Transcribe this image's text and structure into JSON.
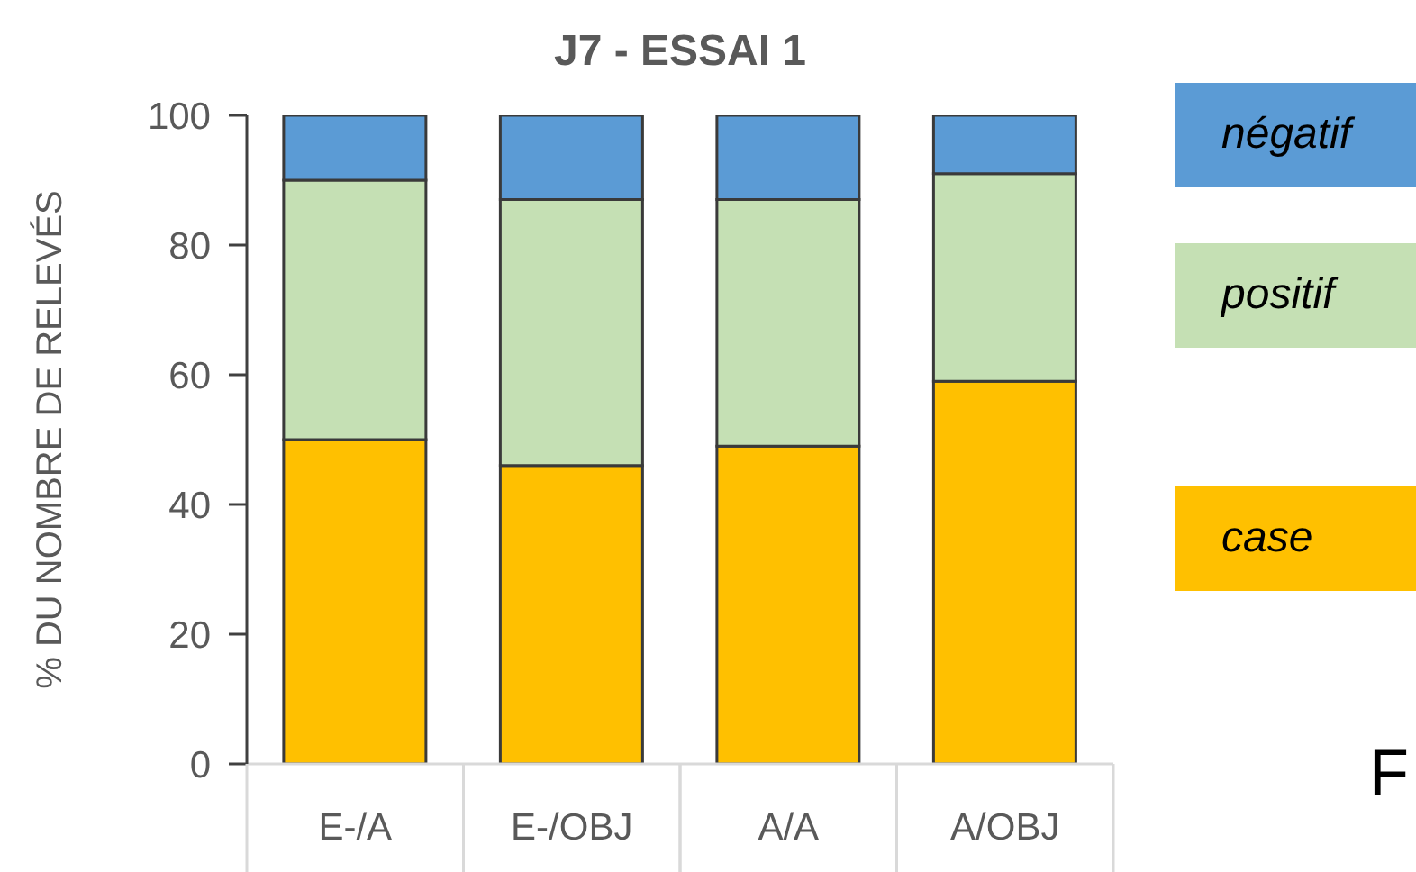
{
  "chart_data": {
    "type": "bar",
    "title": "J7 - ESSAI 1",
    "ylabel": "% DU NOMBRE DE RELEVÉS",
    "categories": [
      "E-/A",
      "E-/OBJ",
      "A/A",
      "A/OBJ"
    ],
    "series": [
      {
        "name": "case",
        "color": "#ffc000",
        "values": [
          50,
          46,
          49,
          59
        ]
      },
      {
        "name": "positif",
        "color": "#c5e0b4",
        "values": [
          40,
          41,
          38,
          32
        ]
      },
      {
        "name": "négatif",
        "color": "#5b9bd5",
        "values": [
          10,
          13,
          13,
          9
        ]
      }
    ],
    "stacked": true,
    "ylim": [
      0,
      100
    ],
    "yticks": [
      0,
      20,
      40,
      60,
      80,
      100
    ],
    "legend": "right",
    "annotations": [
      "F"
    ]
  }
}
